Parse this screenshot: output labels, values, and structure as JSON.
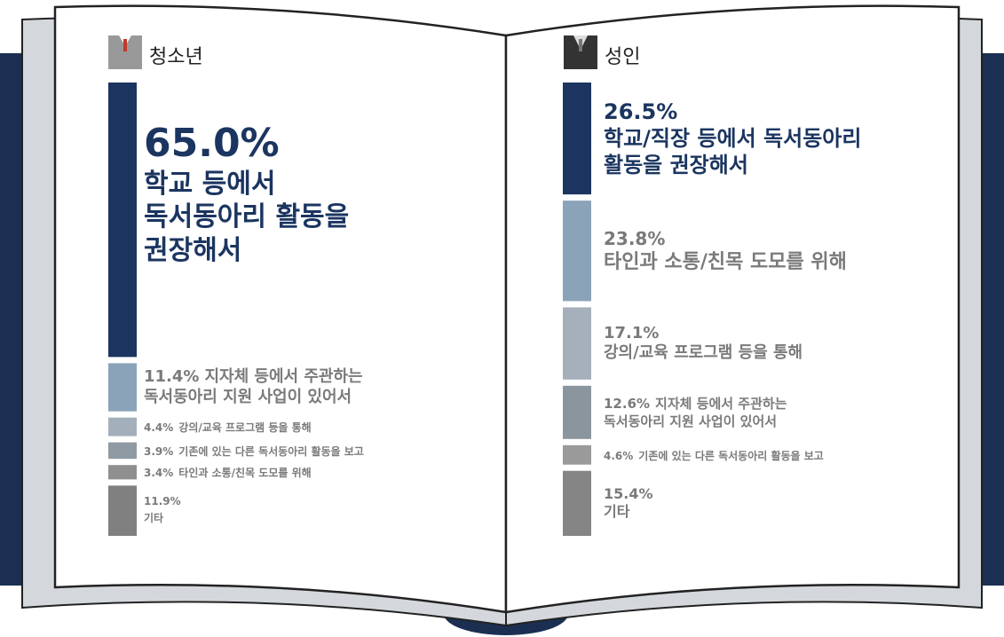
{
  "chart_data": [
    {
      "type": "stacked-column",
      "title": "청소년",
      "categories": [
        "학교 등에서\n독서동아리 활동을\n권장해서",
        "지자체 등에서 주관하는\n독서동아리 지원 사업이 있어서",
        "강의/교육 프로그램 등을 통해",
        "기존에 있는 다른 독서동아리 활동을 보고",
        "타인과 소통/친목 도모를 위해",
        "기타"
      ],
      "values": [
        65.0,
        11.4,
        4.4,
        3.9,
        3.4,
        11.9
      ],
      "value_labels": [
        "65.0%",
        "11.4%",
        "4.4%",
        "3.9%",
        "3.4%",
        "11.9%"
      ],
      "colors": [
        "#1b3560",
        "#8aa3b8",
        "#a3b0bb",
        "#8f9aa3",
        "#8f8f8f",
        "#808080"
      ]
    },
    {
      "type": "stacked-column",
      "title": "성인",
      "categories": [
        "학교/직장 등에서 독서동아리\n활동을 권장해서",
        "타인과 소통/친목 도모를 위해",
        "강의/교육 프로그램 등을 통해",
        "지자체 등에서 주관하는\n독서동아리 지원 사업이 있어서",
        "기존에 있는 다른 독서동아리 활동을 보고",
        "기타"
      ],
      "values": [
        26.5,
        23.8,
        17.1,
        12.6,
        4.6,
        15.4
      ],
      "value_labels": [
        "26.5%",
        "23.8%",
        "17.1%",
        "12.6%",
        "4.6%",
        "15.4%"
      ],
      "colors": [
        "#1b3560",
        "#8aa3b8",
        "#a6b0ba",
        "#8b959d",
        "#9a9a9a",
        "#858585"
      ]
    }
  ]
}
